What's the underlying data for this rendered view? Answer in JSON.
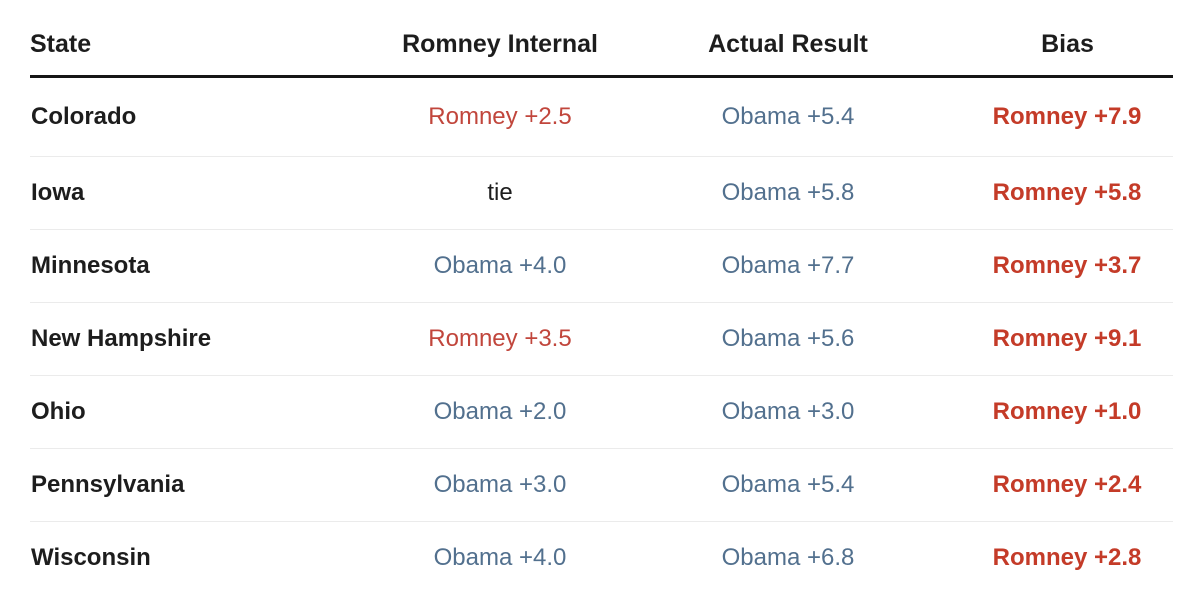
{
  "colors": {
    "romney_red": "#c1463c",
    "obama_blue": "#52708e",
    "bias_red": "#c43b28",
    "text_black": "#1d1d1d",
    "header_rule": "#161616",
    "divider": "#ebebeb"
  },
  "table": {
    "columns": [
      {
        "label": "State"
      },
      {
        "label": "Romney Internal"
      },
      {
        "label": "Actual Result"
      },
      {
        "label": "Bias"
      }
    ],
    "rows": [
      {
        "state": "Colorado",
        "romney_internal": {
          "text": "Romney +2.5",
          "party": "romney"
        },
        "actual_result": {
          "text": "Obama +5.4",
          "party": "obama"
        },
        "bias": {
          "text": "Romney +7.9"
        }
      },
      {
        "state": "Iowa",
        "romney_internal": {
          "text": "tie",
          "party": "tie"
        },
        "actual_result": {
          "text": "Obama +5.8",
          "party": "obama"
        },
        "bias": {
          "text": "Romney +5.8"
        }
      },
      {
        "state": "Minnesota",
        "romney_internal": {
          "text": "Obama +4.0",
          "party": "obama"
        },
        "actual_result": {
          "text": "Obama +7.7",
          "party": "obama"
        },
        "bias": {
          "text": "Romney +3.7"
        }
      },
      {
        "state": "New Hampshire",
        "romney_internal": {
          "text": "Romney +3.5",
          "party": "romney"
        },
        "actual_result": {
          "text": "Obama +5.6",
          "party": "obama"
        },
        "bias": {
          "text": "Romney +9.1"
        }
      },
      {
        "state": "Ohio",
        "romney_internal": {
          "text": "Obama +2.0",
          "party": "obama"
        },
        "actual_result": {
          "text": "Obama +3.0",
          "party": "obama"
        },
        "bias": {
          "text": "Romney +1.0"
        }
      },
      {
        "state": "Pennsylvania",
        "romney_internal": {
          "text": "Obama +3.0",
          "party": "obama"
        },
        "actual_result": {
          "text": "Obama +5.4",
          "party": "obama"
        },
        "bias": {
          "text": "Romney +2.4"
        }
      },
      {
        "state": "Wisconsin",
        "romney_internal": {
          "text": "Obama +4.0",
          "party": "obama"
        },
        "actual_result": {
          "text": "Obama +6.8",
          "party": "obama"
        },
        "bias": {
          "text": "Romney +2.8"
        }
      }
    ]
  },
  "chart_data": {
    "type": "table",
    "columns": [
      "State",
      "Romney Internal",
      "Actual Result",
      "Bias"
    ],
    "rows": [
      [
        "Colorado",
        "Romney +2.5",
        "Obama +5.4",
        "Romney +7.9"
      ],
      [
        "Iowa",
        "tie",
        "Obama +5.8",
        "Romney +5.8"
      ],
      [
        "Minnesota",
        "Obama +4.0",
        "Obama +7.7",
        "Romney +3.7"
      ],
      [
        "New Hampshire",
        "Romney +3.5",
        "Obama +5.6",
        "Romney +9.1"
      ],
      [
        "Ohio",
        "Obama +2.0",
        "Obama +3.0",
        "Romney +1.0"
      ],
      [
        "Pennsylvania",
        "Obama +3.0",
        "Obama +5.4",
        "Romney +2.4"
      ],
      [
        "Wisconsin",
        "Obama +4.0",
        "Obama +6.8",
        "Romney +2.8"
      ]
    ]
  }
}
